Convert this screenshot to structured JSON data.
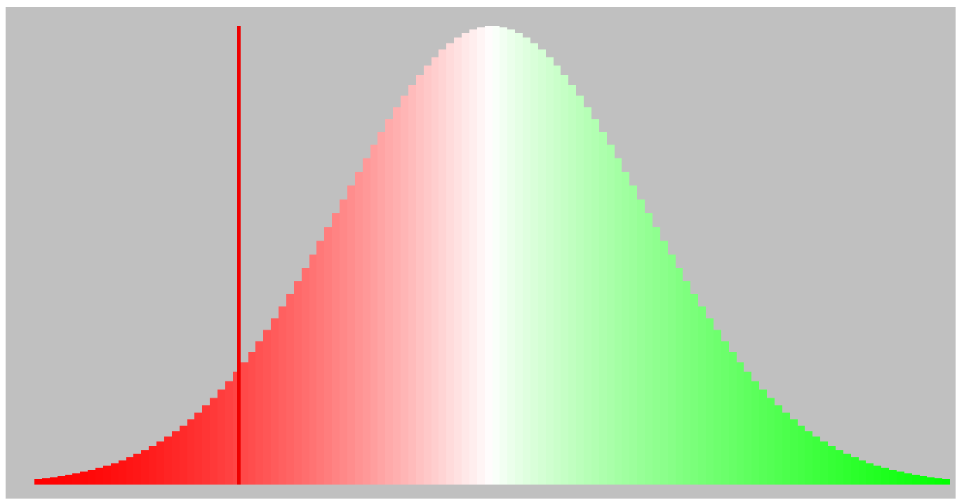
{
  "chart_data": {
    "type": "bar",
    "distribution": "normal",
    "mean": 0,
    "std": 1,
    "x_range": [
      -3.0,
      3.0
    ],
    "bin_count": 120,
    "marker": {
      "x": -1.66
    },
    "colors": {
      "background": "#c0c0c0",
      "low": "#ff0000",
      "mid": "#ffffff",
      "high": "#00ff00",
      "marker": "#ee0000"
    },
    "title": "",
    "xlabel": "",
    "ylabel": "",
    "grid": false,
    "legend": "none"
  }
}
